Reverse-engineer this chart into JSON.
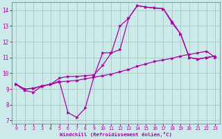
{
  "xlabel": "Windchill (Refroidissement éolien,°C)",
  "bg_color": "#cceaea",
  "grid_color": "#aacccc",
  "line_color": "#aa00aa",
  "xlim": [
    -0.5,
    23.5
  ],
  "ylim": [
    6.8,
    14.5
  ],
  "xticks": [
    0,
    1,
    2,
    3,
    4,
    5,
    6,
    7,
    8,
    9,
    10,
    11,
    12,
    13,
    14,
    15,
    16,
    17,
    18,
    19,
    20,
    21,
    22,
    23
  ],
  "yticks": [
    7,
    8,
    9,
    10,
    11,
    12,
    13,
    14
  ],
  "line1_x": [
    0,
    1,
    2,
    3,
    4,
    5,
    6,
    7,
    8,
    9,
    10,
    11,
    12,
    13,
    14,
    15,
    16,
    17,
    18,
    19,
    20,
    21,
    22,
    23
  ],
  "line1_y": [
    9.3,
    8.9,
    8.8,
    9.2,
    9.3,
    9.5,
    7.5,
    7.2,
    7.8,
    9.8,
    11.3,
    11.3,
    13.0,
    13.5,
    14.3,
    14.2,
    14.15,
    14.1,
    13.2,
    12.5,
    11.0,
    10.9,
    11.0,
    11.1
  ],
  "line2_x": [
    0,
    1,
    2,
    3,
    4,
    5,
    6,
    7,
    8,
    9,
    10,
    11,
    12,
    13,
    14,
    15,
    16,
    17,
    18,
    19,
    20,
    21,
    22,
    23
  ],
  "line2_y": [
    9.3,
    9.0,
    9.05,
    9.2,
    9.3,
    9.45,
    9.5,
    9.55,
    9.65,
    9.75,
    9.85,
    9.95,
    10.1,
    10.25,
    10.45,
    10.6,
    10.75,
    10.85,
    10.95,
    11.1,
    11.2,
    11.3,
    11.4,
    11.0
  ],
  "line3_x": [
    0,
    1,
    2,
    3,
    4,
    5,
    6,
    7,
    8,
    9,
    10,
    11,
    12,
    13,
    14,
    15,
    16,
    17,
    18,
    19,
    20,
    21,
    22,
    23
  ],
  "line3_y": [
    9.3,
    9.0,
    9.05,
    9.2,
    9.3,
    9.7,
    9.8,
    9.8,
    9.85,
    9.9,
    10.5,
    11.3,
    11.5,
    13.5,
    14.3,
    14.2,
    14.15,
    14.1,
    13.3,
    12.5,
    11.0,
    10.9,
    11.0,
    11.1
  ]
}
